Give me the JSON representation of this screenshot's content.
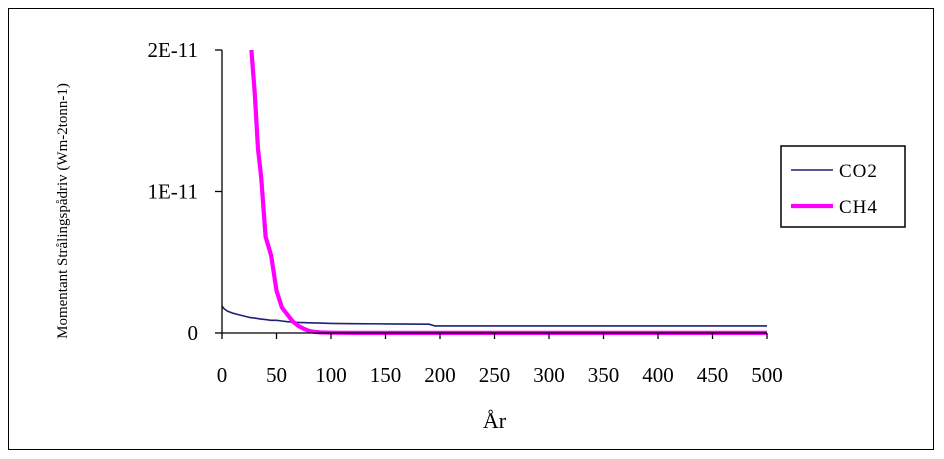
{
  "chart_data": {
    "type": "line",
    "xlabel": "År",
    "ylabel": "Momentant Strålingspådriv (Wm-2tonn-1)",
    "x_ticks": [
      "0",
      "50",
      "100",
      "150",
      "200",
      "250",
      "300",
      "350",
      "400",
      "450",
      "500"
    ],
    "y_ticks": [
      "0",
      "1E-11",
      "2E-11"
    ],
    "xlim": [
      0,
      500
    ],
    "ylim": [
      0,
      2e-11
    ],
    "grid": false,
    "legend_position": "right",
    "series": [
      {
        "name": "CO2",
        "color": "#1f1f7a",
        "x": [
          0,
          2,
          5,
          10,
          15,
          20,
          25,
          30,
          35,
          40,
          45,
          50,
          55,
          60,
          70,
          80,
          90,
          100,
          120,
          150,
          190,
          195,
          250,
          300,
          350,
          400,
          450,
          500
        ],
        "y": [
          1.9e-12,
          1.7e-12,
          1.55e-12,
          1.4e-12,
          1.3e-12,
          1.2e-12,
          1.1e-12,
          1.05e-12,
          1e-12,
          9.5e-13,
          9e-13,
          9e-13,
          8.5e-13,
          8e-13,
          7.5e-13,
          7.2e-13,
          7e-13,
          6.8e-13,
          6.6e-13,
          6.4e-13,
          6.2e-13,
          5e-13,
          5e-13,
          5e-13,
          5e-13,
          5e-13,
          5e-13,
          5e-13
        ]
      },
      {
        "name": "CH4",
        "color": "#ff00ff",
        "x": [
          27,
          30,
          33,
          36,
          40,
          45,
          50,
          55,
          60,
          65,
          70,
          75,
          80,
          85,
          90,
          100,
          120,
          150,
          200,
          250,
          300,
          350,
          400,
          450,
          500
        ],
        "y": [
          2e-11,
          1.7e-11,
          1.3e-11,
          1.1e-11,
          6.8e-12,
          5.5e-12,
          3e-12,
          1.8e-12,
          1.3e-12,
          8e-13,
          5e-13,
          3e-13,
          1.5e-13,
          8e-14,
          4e-14,
          2e-14,
          1e-14,
          1e-14,
          1e-14,
          1e-14,
          1e-14,
          1e-14,
          1e-14,
          1e-14,
          1e-14
        ]
      }
    ]
  }
}
